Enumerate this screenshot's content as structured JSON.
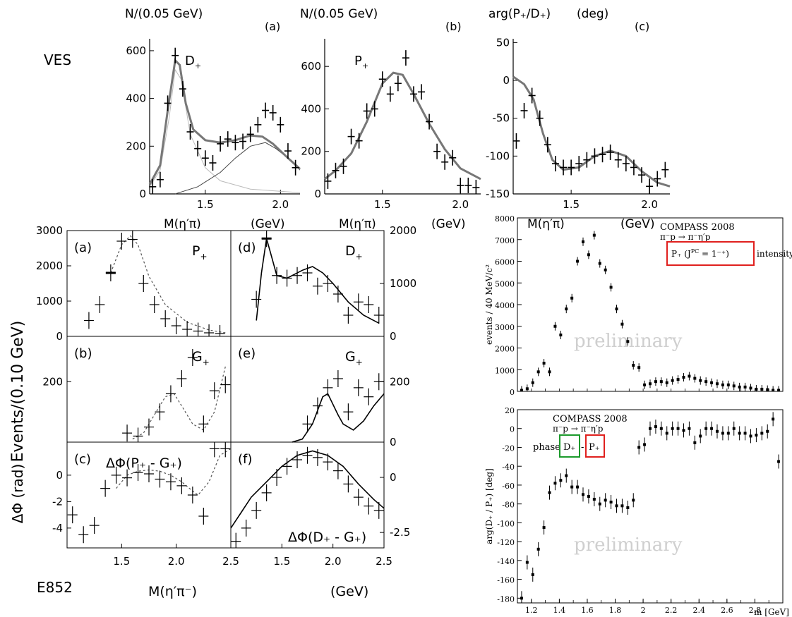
{
  "labels": {
    "ves": "VES",
    "e852": "E852"
  },
  "charts": [
    {
      "id": "ves_a",
      "type": "scatter",
      "title": "N/(0.05 GeV)",
      "panel": "(a)",
      "label": "D",
      "label_sub": "+",
      "xlabel": "M(η′π)",
      "xunit": "(GeV)",
      "xlim": [
        1.13,
        2.13
      ],
      "ylim": [
        0,
        650
      ],
      "xticks": [
        "1.5",
        "2.0"
      ],
      "yticks": [
        "0",
        "200",
        "400",
        "600"
      ],
      "x": [
        1.15,
        1.2,
        1.25,
        1.3,
        1.35,
        1.4,
        1.45,
        1.5,
        1.55,
        1.6,
        1.65,
        1.7,
        1.75,
        1.8,
        1.85,
        1.9,
        1.95,
        2.0,
        2.05,
        2.1
      ],
      "y": [
        30,
        60,
        380,
        580,
        440,
        260,
        190,
        150,
        130,
        210,
        230,
        215,
        220,
        250,
        290,
        350,
        340,
        290,
        180,
        110
      ],
      "fit_total": [
        [
          1.13,
          40
        ],
        [
          1.2,
          120
        ],
        [
          1.25,
          350
        ],
        [
          1.3,
          560
        ],
        [
          1.33,
          540
        ],
        [
          1.37,
          380
        ],
        [
          1.42,
          270
        ],
        [
          1.5,
          225
        ],
        [
          1.6,
          215
        ],
        [
          1.7,
          225
        ],
        [
          1.8,
          245
        ],
        [
          1.88,
          240
        ],
        [
          1.95,
          210
        ],
        [
          2.05,
          150
        ],
        [
          2.13,
          105
        ]
      ],
      "fit_comp1": [
        [
          1.13,
          30
        ],
        [
          1.2,
          100
        ],
        [
          1.26,
          320
        ],
        [
          1.3,
          520
        ],
        [
          1.34,
          480
        ],
        [
          1.4,
          250
        ],
        [
          1.5,
          110
        ],
        [
          1.6,
          55
        ],
        [
          1.8,
          20
        ],
        [
          2.13,
          5
        ]
      ],
      "fit_comp2": [
        [
          1.3,
          0
        ],
        [
          1.45,
          30
        ],
        [
          1.6,
          90
        ],
        [
          1.7,
          150
        ],
        [
          1.8,
          200
        ],
        [
          1.9,
          215
        ],
        [
          1.97,
          190
        ],
        [
          2.05,
          150
        ],
        [
          2.13,
          100
        ]
      ]
    },
    {
      "id": "ves_b",
      "type": "scatter",
      "title": "N/(0.05 GeV)",
      "panel": "(b)",
      "label": "P",
      "label_sub": "+",
      "xlabel": "M(η′π)",
      "xunit": "(GeV)",
      "xlim": [
        1.13,
        2.13
      ],
      "ylim": [
        0,
        730
      ],
      "xticks": [
        "1.5",
        "2.0"
      ],
      "yticks": [
        "0",
        "200",
        "400",
        "600"
      ],
      "x": [
        1.15,
        1.2,
        1.25,
        1.3,
        1.35,
        1.4,
        1.45,
        1.5,
        1.55,
        1.6,
        1.65,
        1.7,
        1.75,
        1.8,
        1.85,
        1.9,
        1.95,
        2.0,
        2.05,
        2.1
      ],
      "y": [
        60,
        110,
        130,
        270,
        250,
        390,
        400,
        540,
        470,
        520,
        640,
        470,
        480,
        340,
        200,
        150,
        170,
        40,
        40,
        30
      ],
      "fit_total": [
        [
          1.13,
          70
        ],
        [
          1.2,
          110
        ],
        [
          1.3,
          190
        ],
        [
          1.4,
          340
        ],
        [
          1.5,
          520
        ],
        [
          1.57,
          570
        ],
        [
          1.63,
          560
        ],
        [
          1.7,
          470
        ],
        [
          1.8,
          330
        ],
        [
          1.9,
          210
        ],
        [
          2.0,
          120
        ],
        [
          2.13,
          70
        ]
      ]
    },
    {
      "id": "ves_c",
      "type": "scatter",
      "title": "arg(P₊/D₊)",
      "title_unit": "(deg)",
      "panel": "(c)",
      "xlabel": "M(η′π)",
      "xunit": "(GeV)",
      "xlim": [
        1.13,
        2.13
      ],
      "ylim": [
        -150,
        55
      ],
      "xticks": [
        "1.5",
        "2.0"
      ],
      "yticks": [
        "-150",
        "-100",
        "-50",
        "0",
        "50"
      ],
      "x": [
        1.15,
        1.2,
        1.25,
        1.3,
        1.35,
        1.4,
        1.45,
        1.5,
        1.55,
        1.6,
        1.65,
        1.7,
        1.75,
        1.8,
        1.85,
        1.9,
        1.95,
        2.0,
        2.05,
        2.1
      ],
      "y": [
        -80,
        -40,
        -20,
        -50,
        -85,
        -110,
        -115,
        -115,
        -110,
        -105,
        -100,
        -98,
        -95,
        -105,
        -110,
        -115,
        -125,
        -140,
        -130,
        -118
      ],
      "fit_total": [
        [
          1.13,
          5
        ],
        [
          1.2,
          -5
        ],
        [
          1.26,
          -25
        ],
        [
          1.32,
          -70
        ],
        [
          1.38,
          -105
        ],
        [
          1.45,
          -118
        ],
        [
          1.55,
          -115
        ],
        [
          1.65,
          -100
        ],
        [
          1.75,
          -93
        ],
        [
          1.85,
          -100
        ],
        [
          1.95,
          -120
        ],
        [
          2.05,
          -135
        ],
        [
          2.13,
          -140
        ]
      ]
    },
    {
      "id": "e852_a",
      "type": "scatter",
      "panel": "(a)",
      "label": "P",
      "label_sub": "+",
      "xlim": [
        1.0,
        2.5
      ],
      "ylim": [
        0,
        3000
      ],
      "yticks": [
        "0",
        "1000",
        "2000",
        "3000"
      ],
      "x": [
        1.2,
        1.3,
        1.4,
        1.5,
        1.6,
        1.7,
        1.8,
        1.9,
        2.0,
        2.1,
        2.2,
        2.3,
        2.4
      ],
      "y": [
        450,
        900,
        1800,
        2700,
        2750,
        1500,
        900,
        500,
        300,
        200,
        150,
        100,
        80
      ],
      "fit_dashed": [
        [
          1.4,
          1800
        ],
        [
          1.5,
          2600
        ],
        [
          1.58,
          2850
        ],
        [
          1.65,
          2600
        ],
        [
          1.75,
          1700
        ],
        [
          1.9,
          900
        ],
        [
          2.1,
          400
        ],
        [
          2.3,
          180
        ],
        [
          2.45,
          100
        ]
      ]
    },
    {
      "id": "e852_d",
      "type": "scatter",
      "panel": "(d)",
      "label": "D",
      "label_sub": "+",
      "xlim": [
        1.0,
        2.5
      ],
      "ylim": [
        0,
        2000
      ],
      "yticks": [
        "0",
        "1000",
        "2000"
      ],
      "x": [
        1.25,
        1.35,
        1.45,
        1.55,
        1.65,
        1.75,
        1.85,
        1.95,
        2.05,
        2.15,
        2.25,
        2.35,
        2.45
      ],
      "y": [
        700,
        1850,
        1150,
        1100,
        1150,
        1200,
        950,
        1000,
        800,
        400,
        650,
        600,
        400
      ],
      "fit_solid": [
        [
          1.25,
          300
        ],
        [
          1.3,
          1200
        ],
        [
          1.35,
          1850
        ],
        [
          1.4,
          1500
        ],
        [
          1.45,
          1150
        ],
        [
          1.55,
          1100
        ],
        [
          1.7,
          1250
        ],
        [
          1.8,
          1320
        ],
        [
          1.9,
          1200
        ],
        [
          2.0,
          1000
        ],
        [
          2.15,
          650
        ],
        [
          2.3,
          400
        ],
        [
          2.45,
          250
        ]
      ]
    },
    {
      "id": "e852_b",
      "type": "scatter",
      "panel": "(b)",
      "label": "G",
      "label_sub": "+",
      "ylabel": "Events/(0.10 GeV)",
      "xlim": [
        1.0,
        2.5
      ],
      "ylim": [
        0,
        350
      ],
      "yticks": [
        "200"
      ],
      "x": [
        1.55,
        1.65,
        1.75,
        1.85,
        1.95,
        2.05,
        2.15,
        2.25,
        2.35,
        2.45
      ],
      "y": [
        30,
        20,
        50,
        100,
        160,
        210,
        280,
        60,
        170,
        190
      ],
      "fit_dashed": [
        [
          1.6,
          10
        ],
        [
          1.7,
          30
        ],
        [
          1.8,
          90
        ],
        [
          1.9,
          150
        ],
        [
          1.98,
          160
        ],
        [
          2.05,
          120
        ],
        [
          2.15,
          60
        ],
        [
          2.25,
          40
        ],
        [
          2.35,
          100
        ],
        [
          2.45,
          250
        ]
      ]
    },
    {
      "id": "e852_e",
      "type": "scatter",
      "panel": "(e)",
      "label": "G",
      "label_sub": "+",
      "xlim": [
        1.0,
        2.5
      ],
      "ylim": [
        0,
        350
      ],
      "yticks": [
        "0",
        "200"
      ],
      "x": [
        1.75,
        1.85,
        1.95,
        2.05,
        2.15,
        2.25,
        2.35,
        2.45
      ],
      "y": [
        60,
        120,
        180,
        210,
        100,
        180,
        150,
        200
      ],
      "fit_solid": [
        [
          1.6,
          0
        ],
        [
          1.7,
          10
        ],
        [
          1.8,
          60
        ],
        [
          1.9,
          150
        ],
        [
          1.95,
          160
        ],
        [
          2.05,
          90
        ],
        [
          2.1,
          60
        ],
        [
          2.2,
          40
        ],
        [
          2.3,
          70
        ],
        [
          2.4,
          120
        ],
        [
          2.5,
          160
        ]
      ]
    },
    {
      "id": "e852_c",
      "type": "scatter",
      "panel": "(c)",
      "label": "ΔΦ(P₊ - G₊)",
      "ylabel": "ΔΦ   (rad)",
      "xlabel": "M(η′π⁻)",
      "xlim": [
        1.0,
        2.5
      ],
      "ylim": [
        -5.5,
        2.5
      ],
      "xticks": [
        "1.5",
        "2.0",
        "2.5"
      ],
      "yticks": [
        "-4",
        "-2",
        "0"
      ],
      "x": [
        1.05,
        1.15,
        1.25,
        1.35,
        1.45,
        1.55,
        1.65,
        1.75,
        1.85,
        1.95,
        2.05,
        2.15,
        2.25,
        2.35,
        2.45
      ],
      "y": [
        -3,
        -4.5,
        -3.8,
        -1,
        0,
        -0.2,
        0.2,
        0.1,
        -0.3,
        -0.5,
        -0.8,
        -1.5,
        -3.1,
        2,
        2
      ],
      "fit_dashed": [
        [
          1.45,
          -1
        ],
        [
          1.55,
          0
        ],
        [
          1.65,
          0.3
        ],
        [
          1.75,
          0.4
        ],
        [
          1.85,
          0.3
        ],
        [
          1.95,
          0
        ],
        [
          2.05,
          -0.5
        ],
        [
          2.15,
          -1.2
        ],
        [
          2.2,
          -1.5
        ],
        [
          2.3,
          -0.5
        ],
        [
          2.4,
          1.5
        ],
        [
          2.5,
          2
        ]
      ]
    },
    {
      "id": "e852_f",
      "type": "scatter",
      "panel": "(f)",
      "label": "ΔΦ(D₊ - G₊)",
      "xunit": "(GeV)",
      "xlim": [
        1.0,
        2.5
      ],
      "ylim": [
        -3.2,
        1.6
      ],
      "xticks": [
        "1.5",
        "2.0",
        "2.5"
      ],
      "yticks": [
        "-2.5",
        "0"
      ],
      "x": [
        1.05,
        1.15,
        1.25,
        1.35,
        1.45,
        1.55,
        1.65,
        1.75,
        1.85,
        1.95,
        2.05,
        2.15,
        2.25,
        2.35,
        2.45
      ],
      "y": [
        -2.9,
        -2.3,
        -1.5,
        -0.7,
        0,
        0.5,
        0.8,
        1.0,
        0.9,
        0.7,
        0.3,
        -0.3,
        -0.9,
        -1.3,
        -1.5
      ],
      "fit_solid": [
        [
          1.0,
          -2.3
        ],
        [
          1.1,
          -1.6
        ],
        [
          1.2,
          -0.9
        ],
        [
          1.35,
          -0.2
        ],
        [
          1.5,
          0.5
        ],
        [
          1.65,
          1.0
        ],
        [
          1.8,
          1.2
        ],
        [
          1.95,
          1.0
        ],
        [
          2.1,
          0.5
        ],
        [
          2.25,
          -0.3
        ],
        [
          2.4,
          -1.0
        ],
        [
          2.5,
          -1.4
        ]
      ]
    },
    {
      "id": "compass_top",
      "type": "scatter",
      "ylabel": "events / 40 MeV/c²",
      "legend_lines": [
        "COMPASS 2008",
        "π⁻p → π⁻η′p"
      ],
      "highlight": "P₊ (J",
      "highlight_sup": "PC",
      "highlight_mid": " = 1⁻⁺)",
      "legend_rest": "intensity",
      "watermark": "preliminary",
      "xlim": [
        1.1,
        3.0
      ],
      "ylim": [
        0,
        8000
      ],
      "yticks": [
        "0",
        "1000",
        "2000",
        "3000",
        "4000",
        "5000",
        "6000",
        "7000",
        "8000"
      ],
      "x": [
        1.13,
        1.17,
        1.21,
        1.25,
        1.29,
        1.33,
        1.37,
        1.41,
        1.45,
        1.49,
        1.53,
        1.57,
        1.61,
        1.65,
        1.69,
        1.73,
        1.77,
        1.81,
        1.85,
        1.89,
        1.93,
        1.97,
        2.01,
        2.05,
        2.09,
        2.13,
        2.17,
        2.21,
        2.25,
        2.29,
        2.33,
        2.37,
        2.41,
        2.45,
        2.49,
        2.53,
        2.57,
        2.61,
        2.65,
        2.69,
        2.73,
        2.77,
        2.81,
        2.85,
        2.89,
        2.93,
        2.97
      ],
      "y": [
        50,
        120,
        400,
        900,
        1300,
        900,
        3000,
        2600,
        3800,
        4300,
        6000,
        6900,
        6300,
        7200,
        5900,
        5600,
        4800,
        3800,
        3100,
        2300,
        1200,
        1100,
        300,
        350,
        450,
        450,
        400,
        500,
        550,
        650,
        700,
        600,
        500,
        450,
        400,
        350,
        300,
        300,
        250,
        200,
        200,
        150,
        100,
        100,
        80,
        50,
        50
      ]
    },
    {
      "id": "compass_bottom",
      "type": "scatter",
      "ylabel": "arg(D₊ / P₊) [deg]",
      "legend_lines": [
        "COMPASS 2008",
        "π⁻p → π⁻η′p"
      ],
      "phase_text": "phase",
      "highlight_green": "D₊",
      "dash": "-",
      "highlight_red": "P₊",
      "watermark": "preliminary",
      "xlabel": "m [GeV]",
      "xlim": [
        1.1,
        3.0
      ],
      "ylim": [
        -185,
        20
      ],
      "xticks": [
        "1.2",
        "1.4",
        "1.6",
        "1.8",
        "2",
        "2.2",
        "2.4",
        "2.6",
        "2.8"
      ],
      "yticks": [
        "-180",
        "-160",
        "-140",
        "-120",
        "-100",
        "-80",
        "-60",
        "-40",
        "-20",
        "0",
        "20"
      ],
      "x": [
        1.13,
        1.17,
        1.21,
        1.25,
        1.29,
        1.33,
        1.37,
        1.41,
        1.45,
        1.49,
        1.53,
        1.57,
        1.61,
        1.65,
        1.69,
        1.73,
        1.77,
        1.81,
        1.85,
        1.89,
        1.93,
        1.97,
        2.01,
        2.05,
        2.09,
        2.13,
        2.17,
        2.21,
        2.25,
        2.29,
        2.33,
        2.37,
        2.41,
        2.45,
        2.49,
        2.53,
        2.57,
        2.61,
        2.65,
        2.69,
        2.73,
        2.77,
        2.81,
        2.85,
        2.89,
        2.93,
        2.97
      ],
      "y": [
        -180,
        -142,
        -155,
        -128,
        -105,
        -68,
        -58,
        -55,
        -50,
        -62,
        -62,
        -70,
        -72,
        -75,
        -80,
        -76,
        -78,
        -82,
        -82,
        -84,
        -76,
        -20,
        -17,
        0,
        2,
        0,
        -5,
        0,
        0,
        -2,
        0,
        -15,
        -8,
        0,
        0,
        -3,
        -5,
        -5,
        0,
        -5,
        -5,
        -8,
        -7,
        -5,
        -3,
        10,
        -35
      ]
    }
  ]
}
